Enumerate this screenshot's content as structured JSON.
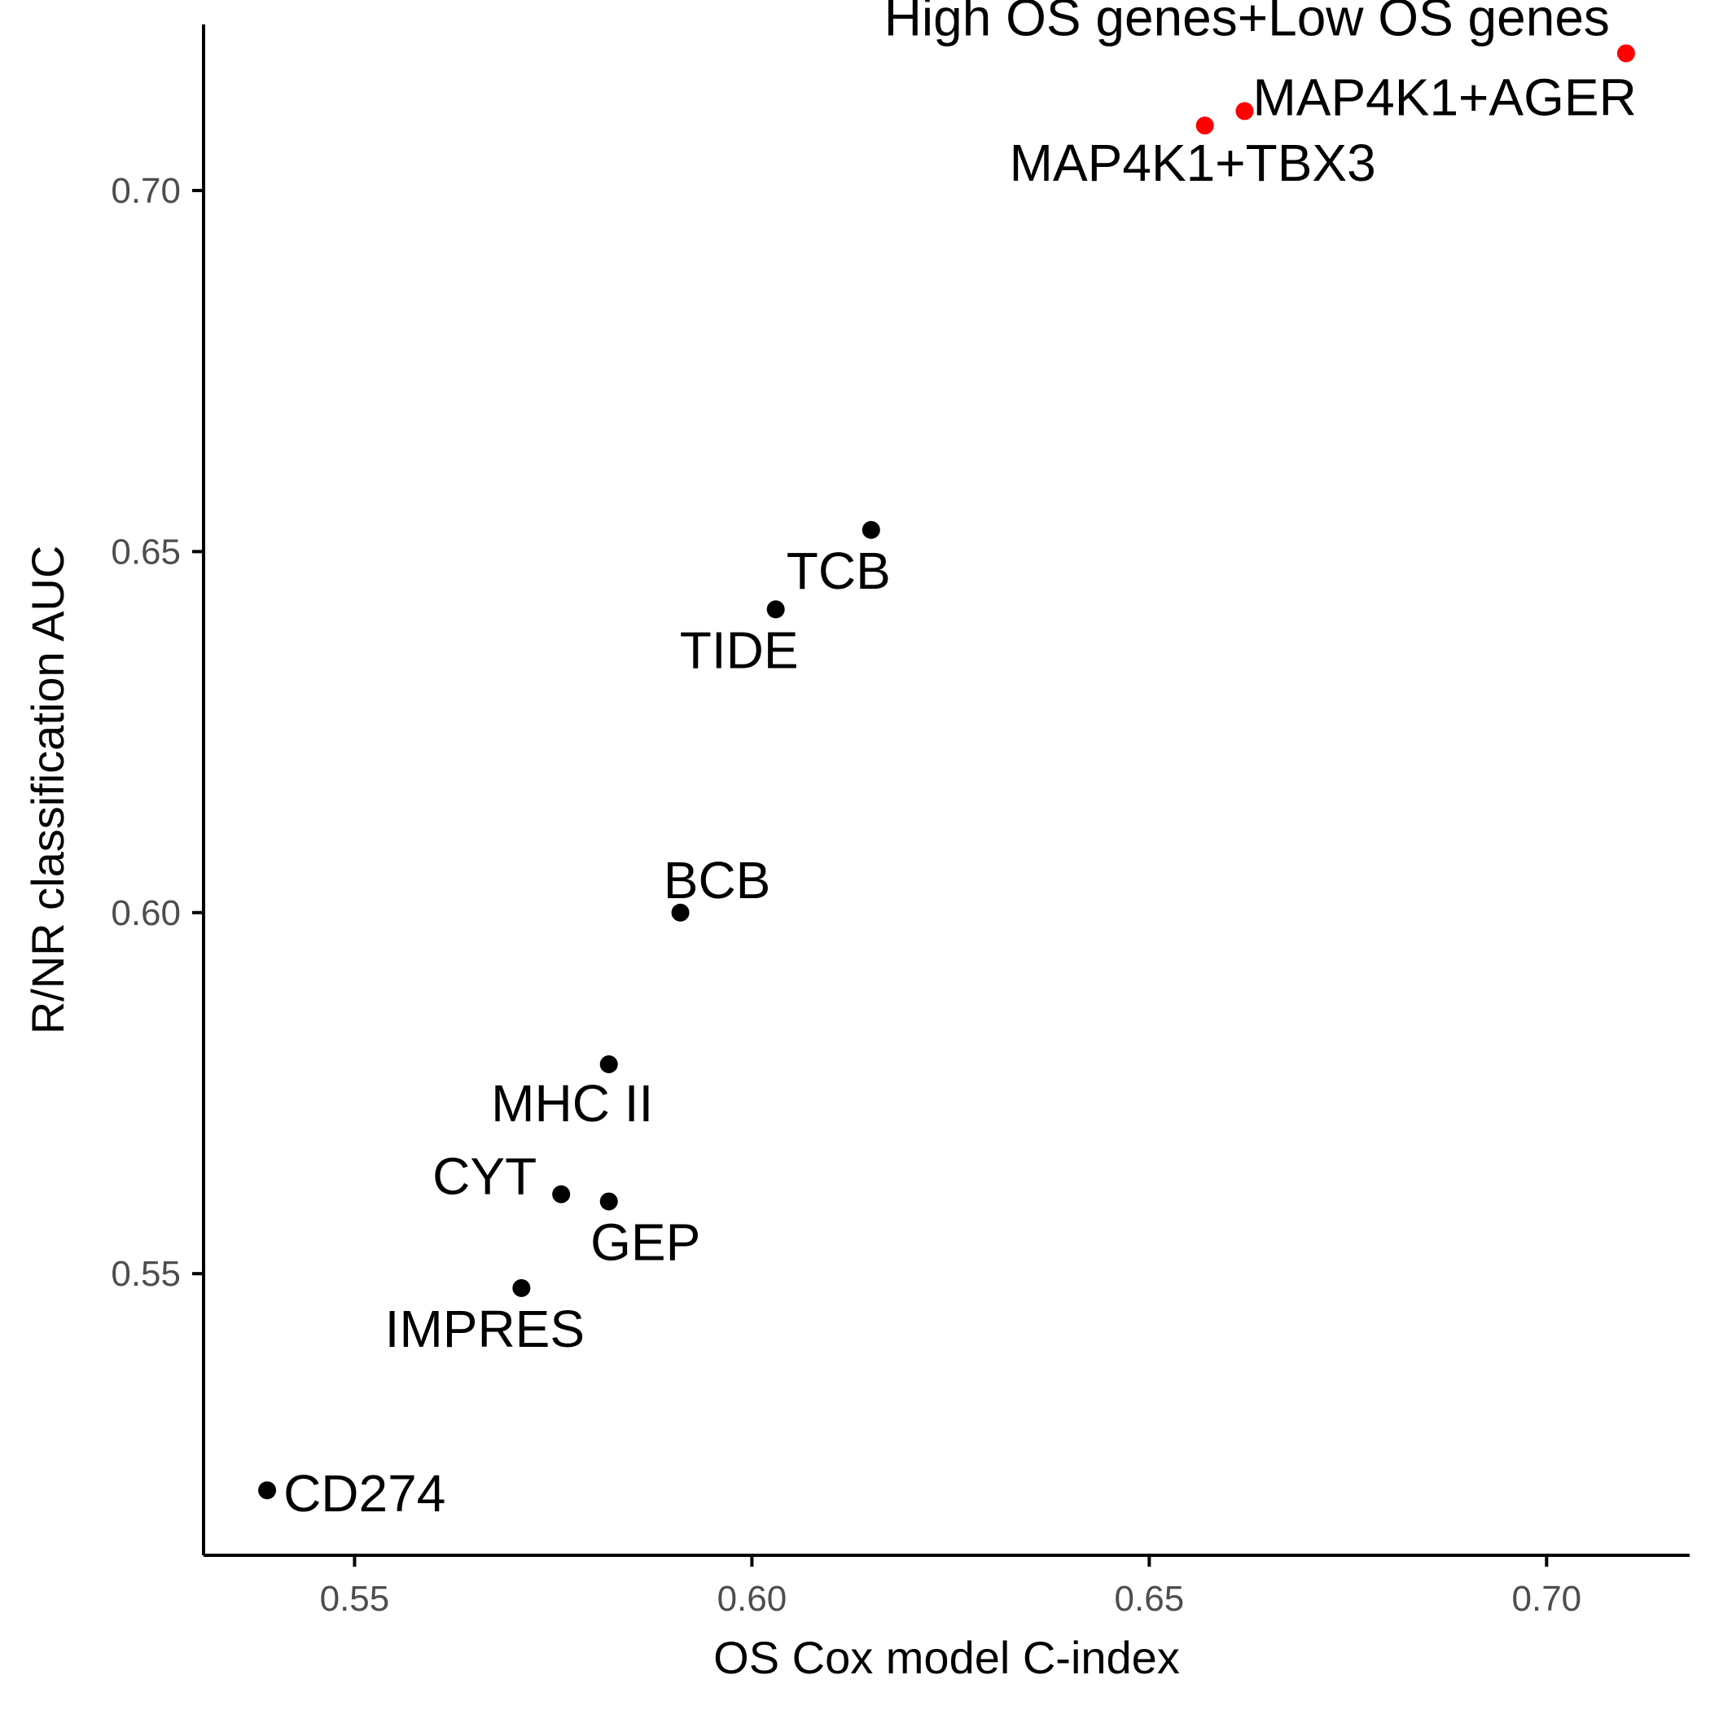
{
  "chart_data": {
    "type": "scatter",
    "title": "",
    "xlabel": "OS Cox model C-index",
    "ylabel": "R/NR classification AUC",
    "xlim": [
      0.531,
      0.718
    ],
    "ylim": [
      0.511,
      0.723
    ],
    "xticks": [
      0.55,
      0.6,
      0.65,
      0.7
    ],
    "yticks": [
      0.55,
      0.6,
      0.65,
      0.7
    ],
    "xtick_labels": [
      "0.55",
      "0.60",
      "0.65",
      "0.70"
    ],
    "ytick_labels": [
      "0.55",
      "0.60",
      "0.65",
      "0.70"
    ],
    "grid": false,
    "legend": "none",
    "colors": {
      "highlight": "#ff0000",
      "default": "#000000"
    },
    "points": [
      {
        "label": "High OS genes+Low OS genes",
        "x": 0.71,
        "y": 0.719,
        "highlight": true
      },
      {
        "label": "MAP4K1+AGER",
        "x": 0.662,
        "y": 0.711,
        "highlight": true
      },
      {
        "label": "MAP4K1+TBX3",
        "x": 0.657,
        "y": 0.709,
        "highlight": true
      },
      {
        "label": "TCB",
        "x": 0.615,
        "y": 0.653,
        "highlight": false
      },
      {
        "label": "TIDE",
        "x": 0.603,
        "y": 0.642,
        "highlight": false
      },
      {
        "label": "BCB",
        "x": 0.591,
        "y": 0.6,
        "highlight": false
      },
      {
        "label": "MHC II",
        "x": 0.582,
        "y": 0.579,
        "highlight": false
      },
      {
        "label": "CYT",
        "x": 0.576,
        "y": 0.561,
        "highlight": false
      },
      {
        "label": "GEP",
        "x": 0.582,
        "y": 0.56,
        "highlight": false
      },
      {
        "label": "IMPRES",
        "x": 0.571,
        "y": 0.548,
        "highlight": false
      },
      {
        "label": "CD274",
        "x": 0.539,
        "y": 0.52,
        "highlight": false
      }
    ]
  }
}
